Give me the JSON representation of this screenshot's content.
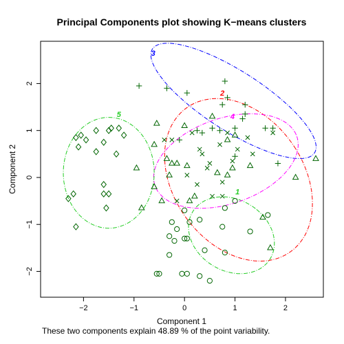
{
  "chart_data": {
    "type": "scatter",
    "title": "Principal Components plot showing K−means clusters",
    "xlabel": "Component 1",
    "ylabel": "Component 2",
    "caption": "These two components explain 48.89 % of the point variability.",
    "xlim": [
      -2.85,
      2.75
    ],
    "ylim": [
      -2.55,
      2.9
    ],
    "x_ticks": [
      -2,
      -1,
      0,
      1,
      2
    ],
    "y_ticks": [
      -2,
      -1,
      0,
      1,
      2
    ],
    "point_color": "#006400",
    "series": [
      {
        "name": "1",
        "marker": "circle",
        "label_color": "#22cc22",
        "label_pos": [
          1.05,
          -0.3
        ],
        "ellipse": {
          "cx": 0.93,
          "cy": -1.23,
          "rx": 0.74,
          "ry": 0.92,
          "angle_deg": 50,
          "color": "#22cc22"
        },
        "points": [
          [
            0.0,
            -0.7
          ],
          [
            -0.25,
            -0.95
          ],
          [
            0.1,
            -0.95
          ],
          [
            -0.3,
            -1.25
          ],
          [
            -0.2,
            -1.35
          ],
          [
            0.05,
            -1.3
          ],
          [
            0.3,
            -0.9
          ],
          [
            0.8,
            -0.65
          ],
          [
            1.0,
            -0.5
          ],
          [
            0.75,
            -1.05
          ],
          [
            1.3,
            -1.15
          ],
          [
            -0.5,
            -2.05
          ],
          [
            -0.55,
            -2.05
          ],
          [
            -0.05,
            -2.05
          ],
          [
            0.05,
            -2.05
          ],
          [
            0.3,
            -2.1
          ],
          [
            0.5,
            -2.2
          ],
          [
            0.4,
            -1.55
          ],
          [
            -0.3,
            -1.65
          ],
          [
            0.8,
            -1.6
          ],
          [
            0.0,
            -1.3
          ],
          [
            1.65,
            -0.8
          ],
          [
            -0.15,
            -1.1
          ]
        ]
      },
      {
        "name": "2",
        "marker": "triangle",
        "label_color": "#ff0000",
        "label_pos": [
          0.75,
          1.8
        ],
        "ellipse": {
          "cx": 1.07,
          "cy": -0.05,
          "rx": 1.31,
          "ry": 1.85,
          "angle_deg": 30,
          "color": "#ff0000"
        },
        "points": [
          [
            -0.55,
            1.15
          ],
          [
            -0.6,
            0.7
          ],
          [
            -0.35,
            0.4
          ],
          [
            -0.25,
            0.3
          ],
          [
            -0.15,
            0.3
          ],
          [
            0.05,
            0.25
          ],
          [
            -0.3,
            0.05
          ],
          [
            0.65,
            0.1
          ],
          [
            0.85,
            0.05
          ],
          [
            0.95,
            0.2
          ],
          [
            0.55,
            1.3
          ],
          [
            0.85,
            0.8
          ],
          [
            -0.45,
            -0.5
          ],
          [
            0.0,
            1.1
          ],
          [
            1.3,
            0.25
          ],
          [
            1.0,
            0.9
          ],
          [
            2.6,
            0.4
          ],
          [
            2.2,
            0.0
          ],
          [
            1.7,
            -1.5
          ],
          [
            1.55,
            -0.85
          ],
          [
            -0.85,
            -0.65
          ],
          [
            -0.95,
            0.2
          ],
          [
            -0.6,
            -0.2
          ],
          [
            0.2,
            -0.4
          ],
          [
            0.1,
            -0.5
          ]
        ]
      },
      {
        "name": "3",
        "marker": "plus",
        "label_color": "#0000ff",
        "label_pos": [
          -0.62,
          2.65
        ],
        "ellipse": {
          "cx": 0.97,
          "cy": 1.63,
          "rx": 1.95,
          "ry": 0.62,
          "angle_deg": -35,
          "color": "#0000ff"
        },
        "points": [
          [
            -0.9,
            1.95
          ],
          [
            -0.35,
            1.9
          ],
          [
            0.05,
            1.8
          ],
          [
            0.8,
            2.05
          ],
          [
            0.85,
            1.7
          ],
          [
            1.2,
            1.55
          ],
          [
            0.75,
            1.55
          ],
          [
            1.2,
            1.35
          ],
          [
            1.0,
            1.05
          ],
          [
            1.15,
            1.25
          ],
          [
            0.55,
            1.05
          ],
          [
            0.35,
            0.95
          ],
          [
            0.7,
            1.0
          ],
          [
            1.0,
            0.45
          ],
          [
            1.6,
            1.05
          ],
          [
            1.75,
            1.05
          ],
          [
            1.85,
            0.3
          ],
          [
            0.25,
            1.0
          ],
          [
            -0.1,
            0.8
          ]
        ]
      },
      {
        "name": "4",
        "marker": "cross",
        "label_color": "#ff00ff",
        "label_pos": [
          0.95,
          1.3
        ],
        "ellipse": {
          "cx": 0.82,
          "cy": 0.35,
          "rx": 1.5,
          "ry": 0.9,
          "angle_deg": 22,
          "color": "#ff00ff"
        },
        "points": [
          [
            -0.4,
            0.8
          ],
          [
            -0.25,
            0.8
          ],
          [
            0.15,
            0.95
          ],
          [
            0.3,
            0.6
          ],
          [
            0.35,
            0.5
          ],
          [
            0.5,
            0.3
          ],
          [
            0.7,
            0.7
          ],
          [
            0.85,
            0.95
          ],
          [
            1.05,
            0.6
          ],
          [
            1.25,
            0.85
          ],
          [
            0.45,
            0.2
          ],
          [
            0.75,
            -0.1
          ],
          [
            0.55,
            -0.4
          ],
          [
            0.75,
            -0.4
          ],
          [
            1.35,
            0.5
          ],
          [
            0.05,
            0.05
          ],
          [
            0.25,
            -0.15
          ],
          [
            -0.15,
            -0.5
          ],
          [
            0.95,
            0.35
          ],
          [
            1.75,
            0.95
          ]
        ]
      },
      {
        "name": "5",
        "marker": "diamond",
        "label_color": "#22cc22",
        "label_pos": [
          -1.3,
          1.35
        ],
        "ellipse": {
          "cx": -1.5,
          "cy": 0.1,
          "rx": 0.9,
          "ry": 1.18,
          "angle_deg": 0,
          "color": "#22cc22"
        },
        "points": [
          [
            -2.15,
            0.85
          ],
          [
            -2.05,
            0.9
          ],
          [
            -1.95,
            0.8
          ],
          [
            -1.75,
            1.0
          ],
          [
            -1.5,
            1.0
          ],
          [
            -1.45,
            1.05
          ],
          [
            -1.3,
            1.05
          ],
          [
            -1.2,
            0.9
          ],
          [
            -1.6,
            0.75
          ],
          [
            -2.1,
            0.65
          ],
          [
            -1.75,
            0.55
          ],
          [
            -1.35,
            0.5
          ],
          [
            -2.3,
            -0.45
          ],
          [
            -2.2,
            -0.35
          ],
          [
            -2.15,
            -1.05
          ],
          [
            -1.6,
            -0.15
          ],
          [
            -1.6,
            -0.35
          ],
          [
            -1.55,
            -0.65
          ],
          [
            -1.5,
            -0.35
          ]
        ]
      }
    ]
  }
}
